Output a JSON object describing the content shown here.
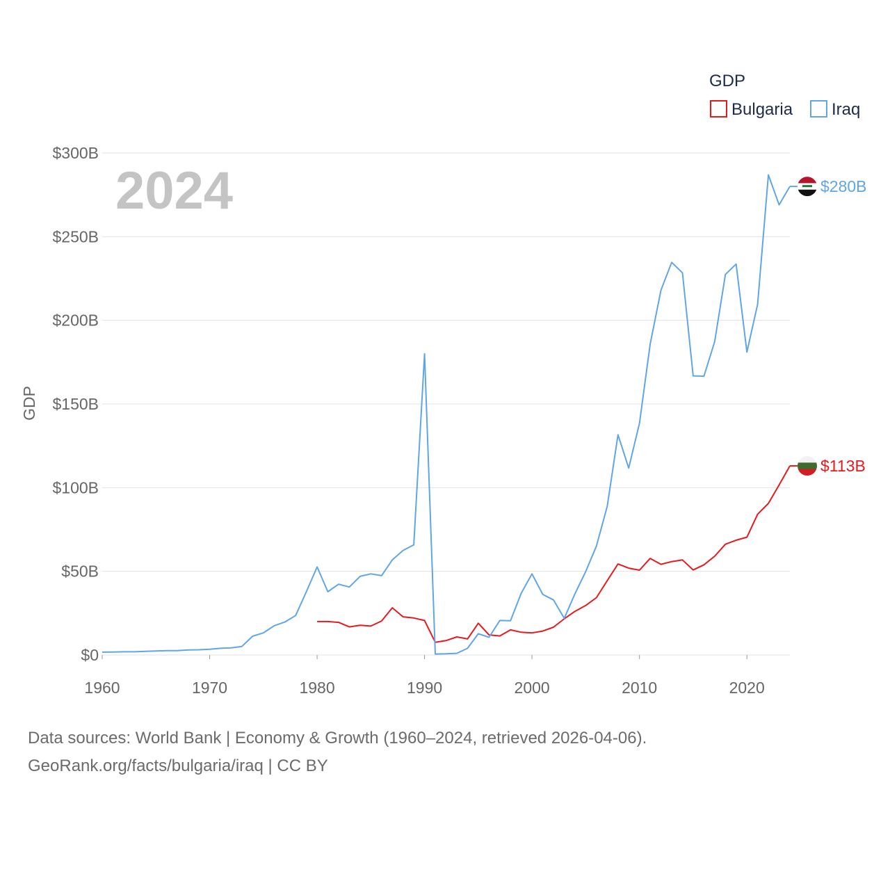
{
  "chart_data": {
    "type": "line",
    "title": "",
    "legend_title": "GDP",
    "ylabel": "GDP",
    "xlabel": "",
    "year_watermark": "2024",
    "x_ticks": [
      1960,
      1970,
      1980,
      1990,
      2000,
      2010,
      2020
    ],
    "xlim": [
      1960,
      2024
    ],
    "ylim": [
      0,
      300
    ],
    "y_ticks": [
      0,
      50,
      100,
      150,
      200,
      250,
      300
    ],
    "y_tick_labels": [
      "$0",
      "$50B",
      "$100B",
      "$150B",
      "$200B",
      "$250B",
      "$300B"
    ],
    "grid": true,
    "legend_position": "top-right",
    "series": [
      {
        "name": "Bulgaria",
        "color": "#e8191c",
        "end_label": "$113B",
        "flag_icon": "bulgaria-flag-icon",
        "x": [
          1980,
          1981,
          1982,
          1983,
          1984,
          1985,
          1986,
          1987,
          1988,
          1989,
          1990,
          1991,
          1992,
          1993,
          1994,
          1995,
          1996,
          1997,
          1998,
          1999,
          2000,
          2001,
          2002,
          2003,
          2004,
          2005,
          2006,
          2007,
          2008,
          2009,
          2010,
          2011,
          2012,
          2013,
          2014,
          2015,
          2016,
          2017,
          2018,
          2019,
          2020,
          2021,
          2022,
          2023,
          2024
        ],
        "values": [
          20.0,
          20.0,
          19.5,
          16.8,
          17.8,
          17.3,
          20.3,
          28.2,
          22.8,
          22.1,
          20.6,
          7.6,
          8.6,
          10.8,
          9.6,
          19.0,
          12.0,
          11.4,
          15.0,
          13.6,
          13.2,
          14.3,
          16.6,
          21.6,
          26.1,
          29.6,
          34.3,
          44.4,
          54.4,
          51.9,
          50.7,
          57.7,
          54.2,
          55.8,
          56.8,
          50.8,
          53.9,
          59.0,
          66.2,
          68.6,
          70.4,
          84.1,
          90.6,
          101.6,
          113.0
        ]
      },
      {
        "name": "Iraq",
        "color": "#5fa6e6",
        "end_label": "$280B",
        "flag_icon": "iraq-flag-icon",
        "x": [
          1960,
          1961,
          1962,
          1963,
          1964,
          1965,
          1966,
          1967,
          1968,
          1969,
          1970,
          1971,
          1972,
          1973,
          1974,
          1975,
          1976,
          1977,
          1978,
          1979,
          1980,
          1981,
          1982,
          1983,
          1984,
          1985,
          1986,
          1987,
          1988,
          1989,
          1990,
          1991,
          1992,
          1993,
          1994,
          1995,
          1996,
          1997,
          1998,
          1999,
          2000,
          2001,
          2002,
          2003,
          2004,
          2005,
          2006,
          2007,
          2008,
          2009,
          2010,
          2011,
          2012,
          2013,
          2014,
          2015,
          2016,
          2017,
          2018,
          2019,
          2020,
          2021,
          2022,
          2023,
          2024
        ],
        "values": [
          1.7,
          1.8,
          1.9,
          1.9,
          2.2,
          2.4,
          2.6,
          2.6,
          3.0,
          3.1,
          3.4,
          4.0,
          4.3,
          5.1,
          11.2,
          13.2,
          17.5,
          19.7,
          23.6,
          37.8,
          52.6,
          37.8,
          42.3,
          40.6,
          47.0,
          48.5,
          47.4,
          56.8,
          62.5,
          65.8,
          180.0,
          0.6,
          0.7,
          1.0,
          4.0,
          12.7,
          10.6,
          20.6,
          20.5,
          37.0,
          48.5,
          36.2,
          32.9,
          21.9,
          36.6,
          49.9,
          65.1,
          88.8,
          131.6,
          111.7,
          138.5,
          185.8,
          218.0,
          234.6,
          228.4,
          166.8,
          166.6,
          187.2,
          227.4,
          233.6,
          181.0,
          209.6,
          286.9,
          269.0,
          280.0
        ]
      }
    ]
  },
  "footer": {
    "line1": "Data sources: World Bank | Economy & Growth (1960–2024, retrieved 2026-04-06).",
    "line2": "GeoRank.org/facts/bulgaria/iraq | CC BY"
  }
}
